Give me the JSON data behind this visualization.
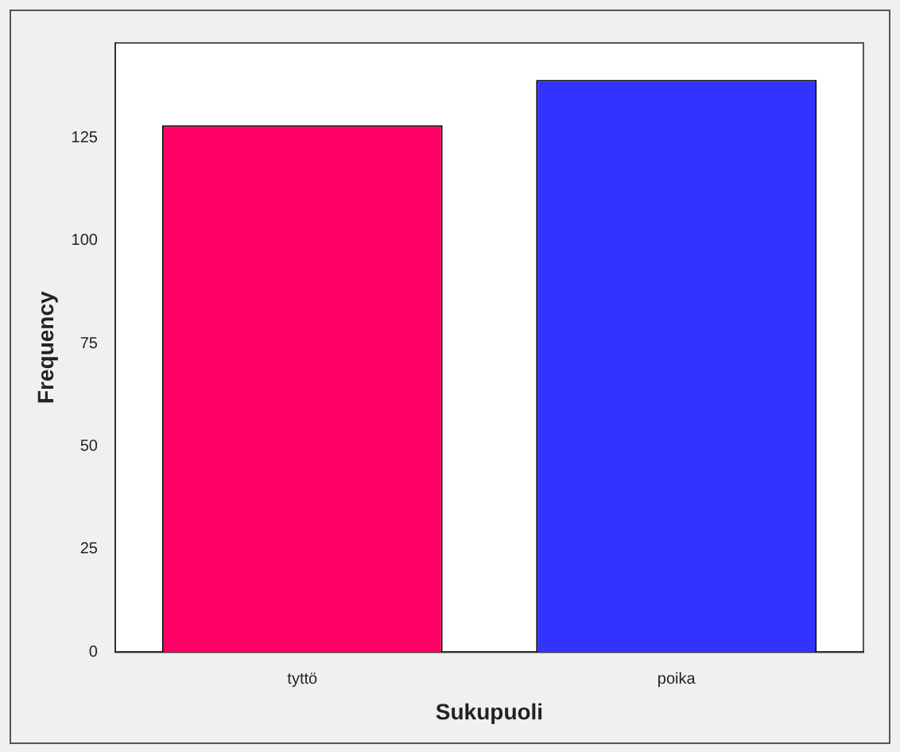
{
  "chart_data": {
    "type": "bar",
    "xlabel": "Sukupuoli",
    "ylabel": "Frequency",
    "categories": [
      "tyttö",
      "poika"
    ],
    "values": [
      128,
      139
    ],
    "colors": [
      "#ff0066",
      "#3333ff"
    ],
    "ylim": [
      0,
      148
    ],
    "yticks": [
      0,
      25,
      50,
      75,
      100,
      125
    ],
    "grid": false,
    "legend": false
  }
}
